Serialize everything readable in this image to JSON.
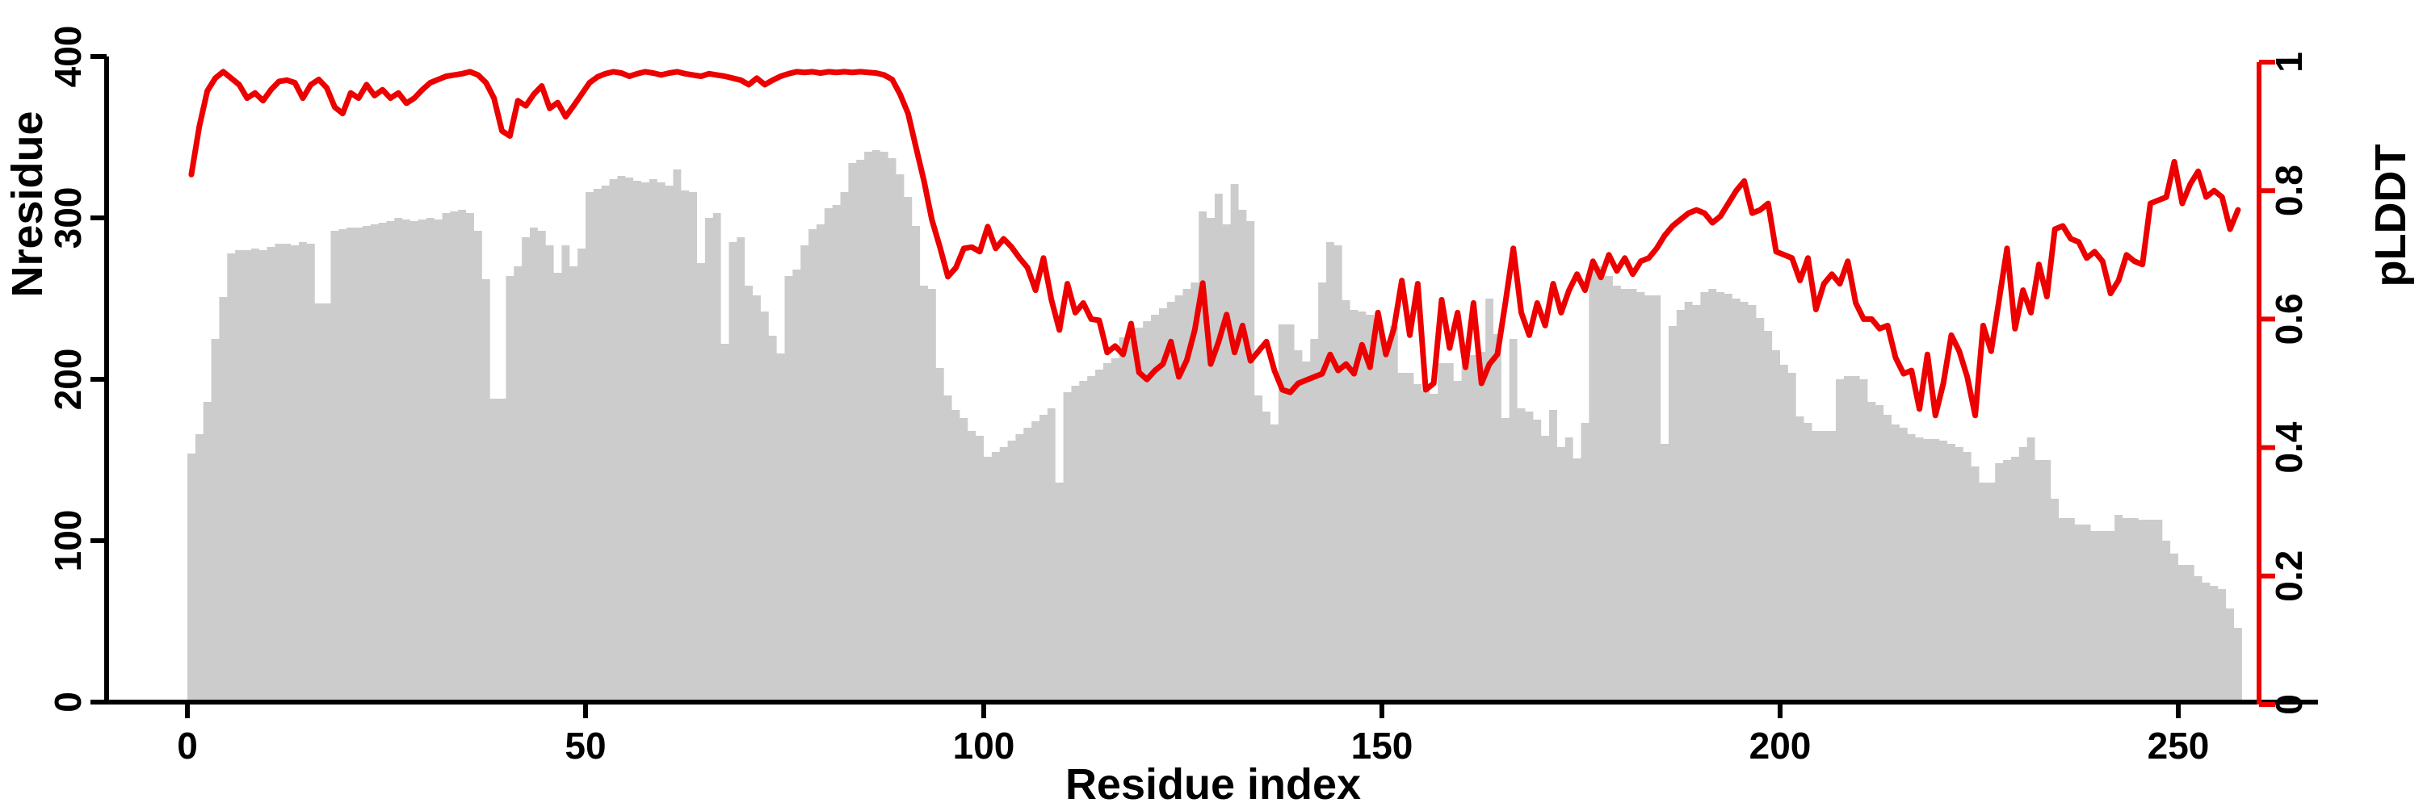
{
  "chart_data": {
    "type": "bar",
    "subtype": "dual-axis bar+line profile",
    "title": "",
    "xlabel": "Residue index",
    "ylabel_left": "Nresidue",
    "ylabel_right": "pLDDT",
    "x_ticks": [
      0,
      50,
      100,
      150,
      200,
      250
    ],
    "x_tick_labels": [
      "0",
      "50",
      "100",
      "150",
      "200",
      "250"
    ],
    "y_ticks_left": [
      0,
      100,
      200,
      300,
      400
    ],
    "y_tick_labels_left": [
      "0",
      "100",
      "200",
      "300",
      "400"
    ],
    "y_ticks_right": [
      0,
      0.2,
      0.4,
      0.6,
      0.8,
      1
    ],
    "y_tick_labels_right": [
      "0",
      "0.2",
      "0.4",
      "0.6",
      "0.8",
      "1"
    ],
    "xlim": [
      0,
      260
    ],
    "ylim_left": [
      0,
      400
    ],
    "ylim_right": [
      0,
      1
    ],
    "grid": false,
    "legend": "none",
    "colors": {
      "bar_fill": "#cccccc",
      "line": "#ec0000",
      "left_axis": "#000000",
      "right_axis": "#ec0000",
      "background": "#ffffff"
    },
    "series": [
      {
        "name": "Nresidue",
        "type": "bar",
        "axis": "left",
        "values": [
          154,
          166,
          186,
          225,
          251,
          278,
          280,
          280,
          281,
          280,
          282,
          284,
          284,
          283,
          285,
          284,
          247,
          247,
          292,
          293,
          294,
          294,
          295,
          296,
          297,
          298,
          300,
          299,
          298,
          299,
          300,
          299,
          303,
          304,
          305,
          303,
          292,
          262,
          188,
          188,
          264,
          270,
          288,
          294,
          292,
          283,
          266,
          283,
          270,
          281,
          316,
          318,
          320,
          324,
          326,
          325,
          323,
          322,
          324,
          322,
          320,
          330,
          317,
          316,
          272,
          300,
          303,
          222,
          285,
          288,
          258,
          252,
          242,
          227,
          216,
          264,
          268,
          283,
          293,
          296,
          306,
          308,
          316,
          334,
          336,
          341,
          342,
          341,
          337,
          327,
          313,
          295,
          258,
          256,
          207,
          190,
          181,
          176,
          168,
          165,
          152,
          155,
          158,
          162,
          166,
          170,
          174,
          178,
          182,
          136,
          192,
          196,
          199,
          202,
          206,
          210,
          213,
          226,
          228,
          232,
          236,
          240,
          244,
          248,
          252,
          256,
          260,
          304,
          300,
          315,
          296,
          321,
          305,
          298,
          190,
          180,
          172,
          234,
          234,
          218,
          211,
          225,
          260,
          285,
          283,
          249,
          243,
          242,
          240,
          236,
          224,
          233,
          204,
          204,
          197,
          193,
          191,
          210,
          210,
          199,
          215,
          215,
          217,
          250,
          228,
          176,
          225,
          182,
          180,
          175,
          165,
          181,
          158,
          164,
          151,
          173,
          270,
          270,
          264,
          258,
          256,
          256,
          254,
          252,
          252,
          160,
          233,
          243,
          248,
          246,
          254,
          256,
          254,
          253,
          250,
          248,
          246,
          238,
          230,
          218,
          209,
          204,
          177,
          173,
          168,
          168,
          168,
          200,
          202,
          202,
          200,
          186,
          184,
          178,
          172,
          170,
          166,
          164,
          163,
          163,
          162,
          160,
          158,
          155,
          146,
          136,
          136,
          148,
          150,
          152,
          158,
          164,
          150,
          150,
          126,
          114,
          114,
          110,
          110,
          106,
          106,
          106,
          116,
          114,
          114,
          113,
          113,
          113,
          100,
          92,
          85,
          85,
          78,
          74,
          72,
          70,
          58,
          46
        ]
      },
      {
        "name": "pLDDT",
        "type": "line",
        "axis": "right",
        "values": [
          0.825,
          0.9,
          0.955,
          0.975,
          0.985,
          0.975,
          0.965,
          0.944,
          0.952,
          0.94,
          0.957,
          0.97,
          0.972,
          0.968,
          0.944,
          0.965,
          0.973,
          0.96,
          0.93,
          0.92,
          0.952,
          0.944,
          0.965,
          0.948,
          0.957,
          0.944,
          0.952,
          0.936,
          0.944,
          0.957,
          0.968,
          0.973,
          0.978,
          0.98,
          0.982,
          0.985,
          0.98,
          0.968,
          0.944,
          0.893,
          0.885,
          0.94,
          0.932,
          0.95,
          0.963,
          0.928,
          0.937,
          0.915,
          0.932,
          0.95,
          0.968,
          0.977,
          0.982,
          0.985,
          0.983,
          0.978,
          0.982,
          0.985,
          0.983,
          0.98,
          0.983,
          0.985,
          0.982,
          0.98,
          0.978,
          0.982,
          0.98,
          0.978,
          0.975,
          0.972,
          0.965,
          0.975,
          0.965,
          0.972,
          0.978,
          0.982,
          0.985,
          0.984,
          0.985,
          0.983,
          0.985,
          0.984,
          0.985,
          0.984,
          0.985,
          0.984,
          0.983,
          0.98,
          0.973,
          0.95,
          0.92,
          0.867,
          0.815,
          0.754,
          0.712,
          0.666,
          0.68,
          0.71,
          0.712,
          0.705,
          0.744,
          0.71,
          0.725,
          0.712,
          0.695,
          0.68,
          0.645,
          0.695,
          0.63,
          0.583,
          0.655,
          0.61,
          0.625,
          0.6,
          0.598,
          0.548,
          0.558,
          0.545,
          0.593,
          0.517,
          0.506,
          0.52,
          0.53,
          0.565,
          0.51,
          0.536,
          0.583,
          0.656,
          0.53,
          0.565,
          0.607,
          0.548,
          0.59,
          0.535,
          0.55,
          0.565,
          0.52,
          0.49,
          0.486,
          0.5,
          0.505,
          0.51,
          0.515,
          0.545,
          0.52,
          0.53,
          0.515,
          0.56,
          0.525,
          0.61,
          0.545,
          0.585,
          0.66,
          0.575,
          0.655,
          0.49,
          0.5,
          0.63,
          0.555,
          0.61,
          0.525,
          0.625,
          0.5,
          0.53,
          0.545,
          0.625,
          0.71,
          0.61,
          0.575,
          0.625,
          0.59,
          0.655,
          0.61,
          0.645,
          0.67,
          0.645,
          0.69,
          0.665,
          0.7,
          0.675,
          0.695,
          0.67,
          0.69,
          0.695,
          0.71,
          0.73,
          0.745,
          0.755,
          0.765,
          0.77,
          0.765,
          0.75,
          0.76,
          0.78,
          0.8,
          0.815,
          0.765,
          0.77,
          0.78,
          0.705,
          0.7,
          0.695,
          0.66,
          0.695,
          0.615,
          0.655,
          0.67,
          0.655,
          0.69,
          0.625,
          0.6,
          0.6,
          0.585,
          0.59,
          0.54,
          0.515,
          0.52,
          0.46,
          0.545,
          0.45,
          0.5,
          0.575,
          0.55,
          0.51,
          0.45,
          0.59,
          0.55,
          0.63,
          0.71,
          0.585,
          0.645,
          0.61,
          0.685,
          0.635,
          0.74,
          0.745,
          0.725,
          0.72,
          0.695,
          0.705,
          0.69,
          0.64,
          0.66,
          0.7,
          0.69,
          0.685,
          0.78,
          0.785,
          0.79,
          0.845,
          0.78,
          0.81,
          0.83,
          0.79,
          0.8,
          0.79,
          0.74,
          0.77
        ]
      }
    ]
  }
}
